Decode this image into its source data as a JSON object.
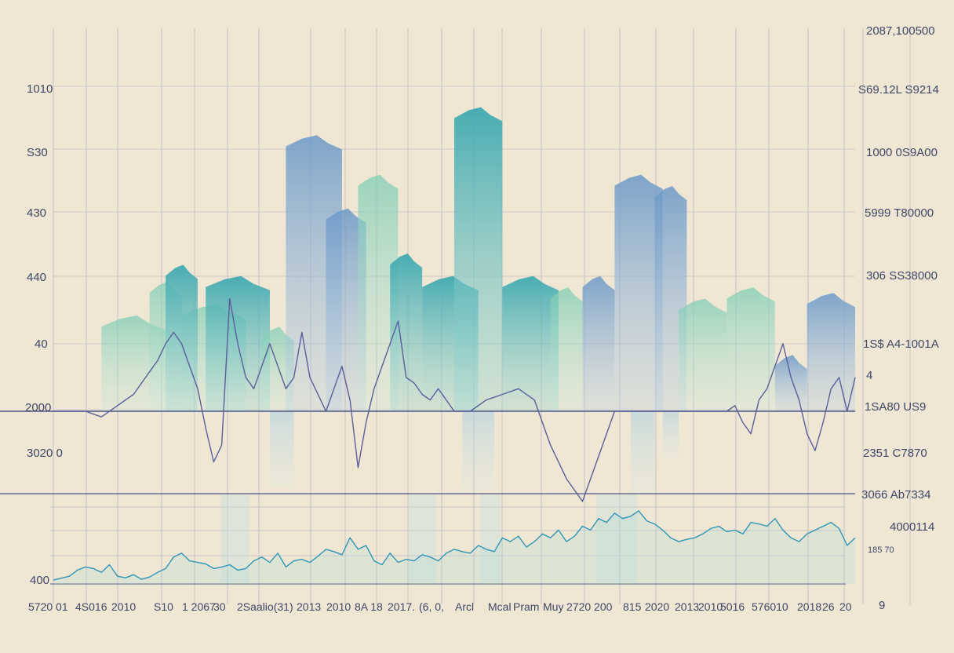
{
  "colors": {
    "background": "#efe7d3",
    "grid": "#bdb6c3",
    "axis_line": "#4c5684",
    "teal": "#57b8b0",
    "blue": "#6f9fc9",
    "mint": "#8fd3bd",
    "line_dark": "#5a5e9b",
    "line_cyan": "#2f95b8"
  },
  "left_ticks": [
    "1010",
    "S30",
    "430",
    "440",
    "40",
    "2000",
    "3020 0",
    "400"
  ],
  "right_ticks": [
    "2087,100500",
    "S69.12L S9214",
    "1000 0S9A00",
    "5999 T80000",
    "306 SS38000",
    "1S$ A4-1001A",
    "4",
    "1SA80 US9",
    "2351 C7870",
    "3066 Ab7334",
    "4000114",
    "185 70",
    "9"
  ],
  "x_ticks": [
    "5720 01",
    "4S016",
    "2010",
    "S10",
    "1 2067",
    "30",
    "2Saalio(31)",
    "2013",
    "2010",
    "8A 18",
    "2017.",
    "(6, 0,",
    "Arcl",
    "Mcal",
    "Pram",
    "Muy",
    "2720 200",
    "815",
    "2020",
    "2013",
    "2010",
    "5016",
    "576010",
    "2018",
    "26",
    "20"
  ],
  "chart_data": [
    {
      "type": "bar",
      "panel": "upper",
      "x_range": [
        0,
        100
      ],
      "baseline": 0,
      "ylim": [
        -100,
        340
      ],
      "bars": [
        {
          "x0": 6,
          "x1": 14,
          "value": 85,
          "tone": "mint"
        },
        {
          "x0": 12,
          "x1": 16,
          "value": 115,
          "tone": "mint"
        },
        {
          "x0": 16,
          "x1": 24,
          "value": 95,
          "tone": "mint"
        },
        {
          "x0": 14,
          "x1": 18,
          "value": 130,
          "tone": "teal"
        },
        {
          "x0": 19,
          "x1": 27,
          "value": 120,
          "tone": "teal"
        },
        {
          "x0": 26,
          "x1": 30,
          "value": 75,
          "tone": "mint"
        },
        {
          "x0": 29,
          "x1": 36,
          "value": 245,
          "tone": "blue"
        },
        {
          "x0": 34,
          "x1": 39,
          "value": 180,
          "tone": "blue"
        },
        {
          "x0": 38,
          "x1": 43,
          "value": 210,
          "tone": "mint"
        },
        {
          "x0": 42,
          "x1": 46,
          "value": 140,
          "tone": "teal"
        },
        {
          "x0": 46,
          "x1": 53,
          "value": 120,
          "tone": "teal"
        },
        {
          "x0": 50,
          "x1": 56,
          "value": 270,
          "tone": "teal"
        },
        {
          "x0": 56,
          "x1": 63,
          "value": 120,
          "tone": "teal"
        },
        {
          "x0": 62,
          "x1": 66,
          "value": 110,
          "tone": "mint"
        },
        {
          "x0": 66,
          "x1": 70,
          "value": 120,
          "tone": "blue"
        },
        {
          "x0": 70,
          "x1": 76,
          "value": 210,
          "tone": "blue"
        },
        {
          "x0": 75,
          "x1": 79,
          "value": 200,
          "tone": "blue"
        },
        {
          "x0": 78,
          "x1": 84,
          "value": 100,
          "tone": "mint"
        },
        {
          "x0": 84,
          "x1": 90,
          "value": 110,
          "tone": "mint"
        },
        {
          "x0": 90,
          "x1": 94,
          "value": 50,
          "tone": "blue"
        },
        {
          "x0": 94,
          "x1": 100,
          "value": 105,
          "tone": "blue"
        },
        {
          "x0": 27,
          "x1": 30,
          "value": -90,
          "tone": "blue"
        },
        {
          "x0": 51,
          "x1": 55,
          "value": -95,
          "tone": "teal"
        },
        {
          "x0": 72,
          "x1": 75,
          "value": -100,
          "tone": "blue"
        },
        {
          "x0": 76,
          "x1": 78,
          "value": -55,
          "tone": "blue"
        }
      ]
    },
    {
      "type": "line",
      "panel": "upper",
      "x_range": [
        0,
        100
      ],
      "ylim": [
        -100,
        340
      ],
      "x": [
        0,
        2,
        4,
        6,
        8,
        10,
        11,
        12,
        13,
        14,
        15,
        16,
        17,
        18,
        19,
        20,
        21,
        22,
        23,
        24,
        25,
        26,
        27,
        28,
        29,
        30,
        31,
        32,
        33,
        34,
        35,
        36,
        37,
        38,
        39,
        40,
        41,
        42,
        43,
        44,
        45,
        46,
        47,
        48,
        49,
        50,
        52,
        54,
        56,
        58,
        60,
        61,
        62,
        63,
        64,
        65,
        66,
        67,
        68,
        70,
        72,
        74,
        76,
        78,
        80,
        82,
        84,
        85,
        86,
        87,
        88,
        89,
        90,
        91,
        92,
        93,
        94,
        95,
        96,
        97,
        98,
        99,
        100
      ],
      "values": [
        0,
        0,
        0,
        -5,
        5,
        15,
        25,
        35,
        45,
        60,
        70,
        60,
        40,
        20,
        -15,
        -45,
        -30,
        100,
        60,
        30,
        20,
        40,
        60,
        40,
        20,
        30,
        70,
        30,
        15,
        0,
        20,
        40,
        10,
        -50,
        -10,
        20,
        40,
        60,
        80,
        30,
        25,
        15,
        10,
        20,
        10,
        0,
        0,
        10,
        15,
        20,
        10,
        -10,
        -30,
        -45,
        -60,
        -70,
        -80,
        -60,
        -40,
        0,
        0,
        0,
        0,
        0,
        0,
        0,
        0,
        5,
        -10,
        -20,
        10,
        20,
        40,
        60,
        30,
        10,
        -20,
        -35,
        -10,
        20,
        30,
        0,
        30
      ]
    },
    {
      "type": "line",
      "panel": "lower",
      "x_range": [
        0,
        100
      ],
      "ylim": [
        0,
        100
      ],
      "x": [
        0,
        2,
        3,
        4,
        5,
        6,
        7,
        8,
        9,
        10,
        11,
        12,
        13,
        14,
        15,
        16,
        17,
        18,
        19,
        20,
        21,
        22,
        23,
        24,
        25,
        26,
        27,
        28,
        29,
        30,
        31,
        32,
        33,
        34,
        35,
        36,
        37,
        38,
        39,
        40,
        41,
        42,
        43,
        44,
        45,
        46,
        47,
        48,
        49,
        50,
        51,
        52,
        53,
        54,
        55,
        56,
        57,
        58,
        59,
        60,
        61,
        62,
        63,
        64,
        65,
        66,
        67,
        68,
        69,
        70,
        71,
        72,
        73,
        74,
        75,
        76,
        77,
        78,
        79,
        80,
        81,
        82,
        83,
        84,
        85,
        86,
        87,
        88,
        89,
        90,
        91,
        92,
        93,
        94,
        95,
        96,
        97,
        98,
        99,
        100
      ],
      "values": [
        5,
        10,
        18,
        22,
        20,
        15,
        25,
        10,
        8,
        12,
        6,
        9,
        15,
        20,
        35,
        40,
        30,
        28,
        26,
        20,
        22,
        25,
        18,
        20,
        30,
        35,
        28,
        40,
        22,
        30,
        32,
        28,
        36,
        45,
        42,
        38,
        60,
        45,
        50,
        30,
        25,
        40,
        28,
        32,
        30,
        38,
        35,
        30,
        40,
        45,
        42,
        40,
        50,
        45,
        42,
        60,
        55,
        62,
        48,
        55,
        65,
        60,
        70,
        55,
        62,
        75,
        70,
        85,
        80,
        92,
        85,
        88,
        95,
        82,
        78,
        70,
        60,
        55,
        58,
        60,
        65,
        72,
        75,
        68,
        70,
        65,
        80,
        78,
        75,
        85,
        70,
        60,
        55,
        65,
        70,
        75,
        80,
        72,
        50,
        60
      ]
    }
  ]
}
